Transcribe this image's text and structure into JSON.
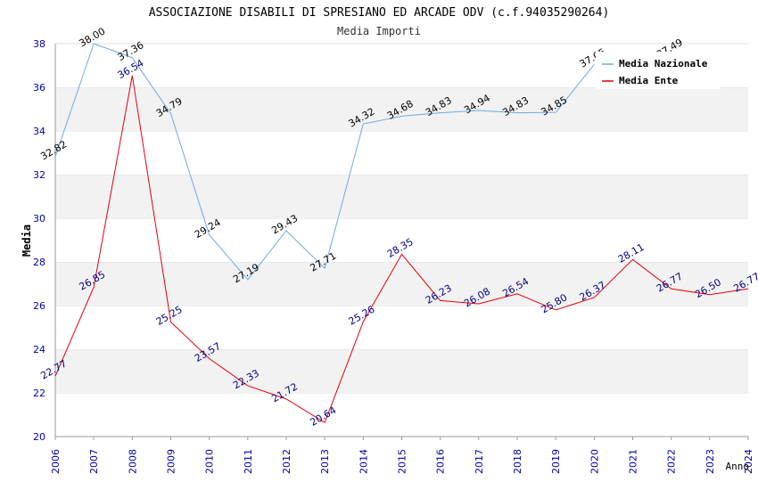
{
  "chart_data": {
    "type": "line",
    "title": "ASSOCIAZIONE DISABILI DI SPRESIANO ED ARCADE ODV (c.f.94035290264)",
    "subtitle": "Media Importi",
    "xlabel": "Anno",
    "ylabel": "Media",
    "ylim": [
      20,
      38
    ],
    "yticks": [
      "20",
      "22",
      "24",
      "26",
      "28",
      "30",
      "32",
      "34",
      "36",
      "38"
    ],
    "categories": [
      "2006",
      "2007",
      "2008",
      "2009",
      "2010",
      "2011",
      "2012",
      "2013",
      "2014",
      "2015",
      "2016",
      "2017",
      "2018",
      "2019",
      "2020",
      "2021",
      "2022",
      "2023",
      "2024"
    ],
    "grid": "horizontal alternating bands",
    "legend_position": "top-right",
    "series": [
      {
        "name": "Media Nazionale",
        "color": "#6fa8e0",
        "label_color": "#000000",
        "values": [
          32.82,
          38.0,
          37.36,
          34.79,
          29.24,
          27.19,
          29.43,
          27.71,
          34.32,
          34.68,
          34.83,
          34.94,
          34.83,
          34.85,
          37.05,
          null,
          37.49,
          null,
          null
        ],
        "labels": [
          "32.82",
          "38.00",
          "37.36",
          "34.79",
          "29.24",
          "27.19",
          "29.43",
          "27.71",
          "34.32",
          "34.68",
          "34.83",
          "34.94",
          "34.83",
          "34.85",
          "37.05",
          null,
          "37.49",
          null,
          null
        ]
      },
      {
        "name": "Media Ente",
        "color": "#e8000b",
        "label_color": "#00008b",
        "values": [
          22.77,
          26.85,
          36.54,
          25.25,
          23.57,
          22.33,
          21.72,
          20.64,
          25.26,
          28.35,
          26.23,
          26.08,
          26.54,
          25.8,
          26.37,
          28.11,
          26.77,
          26.5,
          26.77
        ],
        "labels": [
          "22.77",
          "26.85",
          "36.54",
          "25.25",
          "23.57",
          "22.33",
          "21.72",
          "20.64",
          "25.26",
          "28.35",
          "26.23",
          "26.08",
          "26.54",
          "25.80",
          "26.37",
          "28.11",
          "26.77",
          "26.50",
          "26.77"
        ]
      }
    ]
  }
}
